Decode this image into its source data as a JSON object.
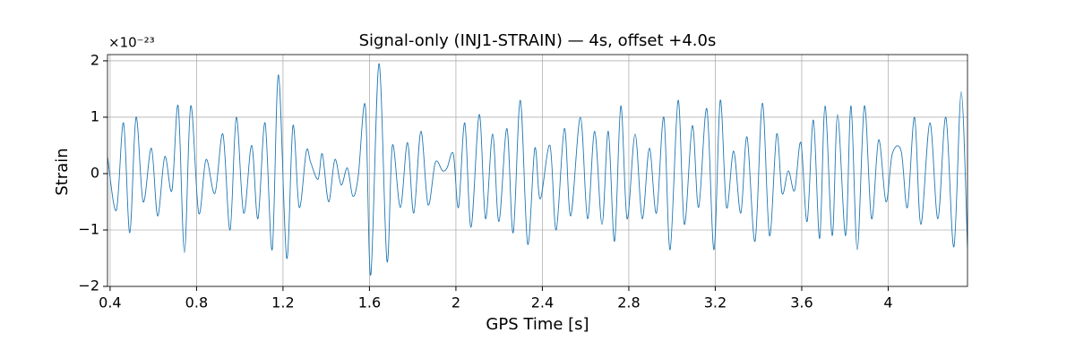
{
  "chart_data": {
    "type": "line",
    "title": "Signal-only (INJ1-STRAIN) — 4s, offset +4.0s",
    "x_label": "GPS Time [s]",
    "y_label": "Strain",
    "y_offset_label": "×10⁻²³",
    "grid": true,
    "xlim": [
      0.388,
      4.367
    ],
    "ylim": [
      -2,
      2.11
    ],
    "xticks": [
      0.4,
      0.8,
      1.2,
      1.6,
      2,
      2.4,
      2.8,
      3.2,
      3.6,
      4
    ],
    "yticks": [
      {
        "value": -2,
        "label": "−2"
      },
      {
        "value": -1,
        "label": "−1"
      },
      0,
      1,
      2
    ],
    "series": [
      {
        "color": "#1f77b4",
        "x": [
          0.388,
          0.429,
          0.462,
          0.491,
          0.52,
          0.553,
          0.591,
          0.62,
          0.653,
          0.686,
          0.715,
          0.744,
          0.773,
          0.81,
          0.844,
          0.885,
          0.922,
          0.955,
          0.984,
          1.018,
          1.055,
          1.084,
          1.117,
          1.15,
          1.179,
          1.217,
          1.246,
          1.275,
          1.308,
          1.328,
          1.362,
          1.382,
          1.411,
          1.44,
          1.469,
          1.498,
          1.523,
          1.548,
          1.581,
          1.606,
          1.644,
          1.681,
          1.706,
          1.743,
          1.776,
          1.805,
          1.838,
          1.871,
          1.905,
          1.938,
          1.959,
          1.988,
          2.012,
          2.041,
          2.07,
          2.108,
          2.137,
          2.17,
          2.199,
          2.236,
          2.265,
          2.298,
          2.332,
          2.365,
          2.39,
          2.435,
          2.464,
          2.502,
          2.531,
          2.576,
          2.609,
          2.642,
          2.676,
          2.705,
          2.734,
          2.763,
          2.792,
          2.829,
          2.862,
          2.895,
          2.928,
          2.962,
          2.991,
          3.028,
          3.057,
          3.094,
          3.123,
          3.161,
          3.194,
          3.223,
          3.252,
          3.285,
          3.318,
          3.347,
          3.384,
          3.418,
          3.451,
          3.484,
          3.509,
          3.538,
          3.567,
          3.596,
          3.625,
          3.654,
          3.683,
          3.708,
          3.741,
          3.766,
          3.803,
          3.828,
          3.857,
          3.89,
          3.923,
          3.956,
          3.99,
          4.019,
          4.06,
          4.089,
          4.122,
          4.151,
          4.193,
          4.23,
          4.267,
          4.304,
          4.338,
          4.367
        ],
        "values": [
          0.3,
          -0.65,
          0.9,
          -1.05,
          1.0,
          -0.5,
          0.45,
          -0.75,
          0.3,
          -0.3,
          1.2,
          -1.4,
          1.2,
          -0.7,
          0.25,
          -0.35,
          0.7,
          -1.0,
          1.0,
          -0.7,
          0.5,
          -0.8,
          0.9,
          -1.35,
          1.75,
          -1.5,
          0.85,
          -0.6,
          0.4,
          0.2,
          -0.1,
          0.35,
          -0.5,
          0.25,
          -0.2,
          0.1,
          -0.4,
          -0.05,
          1.2,
          -1.8,
          1.95,
          -1.55,
          0.5,
          -0.6,
          0.55,
          -0.7,
          0.75,
          -0.55,
          0.2,
          0.05,
          0.1,
          0.35,
          -0.6,
          0.9,
          -0.95,
          1.05,
          -0.8,
          0.7,
          -0.85,
          0.8,
          -1.05,
          1.3,
          -1.25,
          0.45,
          -0.45,
          0.5,
          -1.0,
          0.8,
          -0.75,
          1.0,
          -0.8,
          0.75,
          -0.9,
          0.75,
          -1.2,
          1.2,
          -0.8,
          0.7,
          -0.8,
          0.45,
          -0.7,
          1.0,
          -1.35,
          1.3,
          -0.9,
          0.85,
          -0.6,
          1.15,
          -1.35,
          1.3,
          -0.6,
          0.4,
          -0.7,
          0.65,
          -1.2,
          1.25,
          -1.1,
          0.7,
          -0.35,
          0.05,
          -0.3,
          0.55,
          -0.85,
          0.95,
          -1.15,
          1.2,
          -1.1,
          1.05,
          -1.1,
          1.2,
          -1.35,
          1.2,
          -0.8,
          0.6,
          -0.5,
          0.35,
          0.4,
          -0.6,
          1.0,
          -0.9,
          0.9,
          -0.8,
          1.0,
          -1.3,
          1.45,
          -1.3
        ]
      }
    ]
  }
}
